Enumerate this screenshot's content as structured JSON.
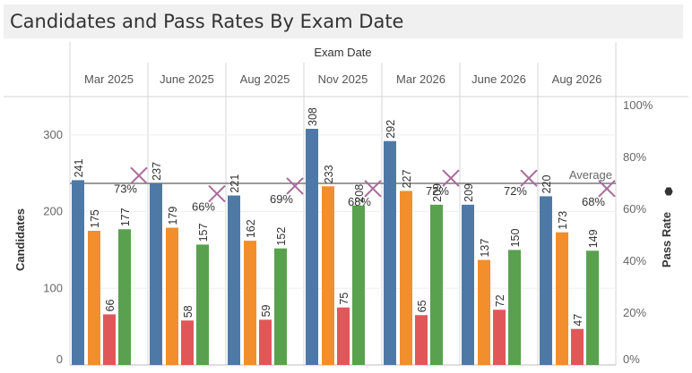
{
  "page": {
    "title": "Candidates and Pass Rates By Exam Date"
  },
  "chart_data": {
    "type": "bar",
    "title": "Candidates and Pass Rates By Exam Date",
    "column_header": "Exam Date",
    "categories": [
      "Mar 2025",
      "June 2025",
      "Aug 2025",
      "Nov 2025",
      "Mar 2026",
      "June 2026",
      "Aug 2026"
    ],
    "ylabel": "Candidates",
    "y2label": "Pass Rate",
    "ylim": [
      0,
      350
    ],
    "y2lim": [
      0,
      100
    ],
    "y_ticks": [
      0,
      100,
      200,
      300
    ],
    "y_tick_labels": [
      "0",
      "100",
      "200",
      "300"
    ],
    "y2_ticks": [
      0,
      20,
      40,
      60,
      80,
      100
    ],
    "y2_tick_labels": [
      "0%",
      "20%",
      "40%",
      "60%",
      "80%",
      "100%"
    ],
    "colors": [
      "#4e79a7",
      "#f28e2b",
      "#e15759",
      "#59a14f"
    ],
    "series": [
      {
        "values": [
          241,
          237,
          221,
          308,
          292,
          209,
          220
        ]
      },
      {
        "values": [
          175,
          179,
          162,
          233,
          227,
          137,
          173
        ]
      },
      {
        "values": [
          66,
          58,
          59,
          75,
          65,
          72,
          47
        ]
      },
      {
        "values": [
          177,
          157,
          152,
          208,
          209,
          150,
          149
        ]
      }
    ],
    "bar_labels": [
      [
        "241",
        "237",
        "221",
        "308",
        "292",
        "209",
        "220"
      ],
      [
        "175",
        "179",
        "162",
        "233",
        "227",
        "137",
        "173"
      ],
      [
        "66",
        "58",
        "59",
        "75",
        "65",
        "72",
        "47"
      ],
      [
        "177",
        "157",
        "152",
        "208",
        "209",
        "150",
        "149"
      ]
    ],
    "pass_rate": {
      "values": [
        73,
        66,
        69,
        68,
        72,
        72,
        68
      ],
      "labels": [
        "73%",
        "66%",
        "69%",
        "68%",
        "72%",
        "72%",
        "68%"
      ],
      "marker": "x-marker",
      "color": "#a86b9a"
    },
    "reference_line": {
      "label": "Average",
      "value": 70
    },
    "y2_icon": "pin-icon"
  }
}
